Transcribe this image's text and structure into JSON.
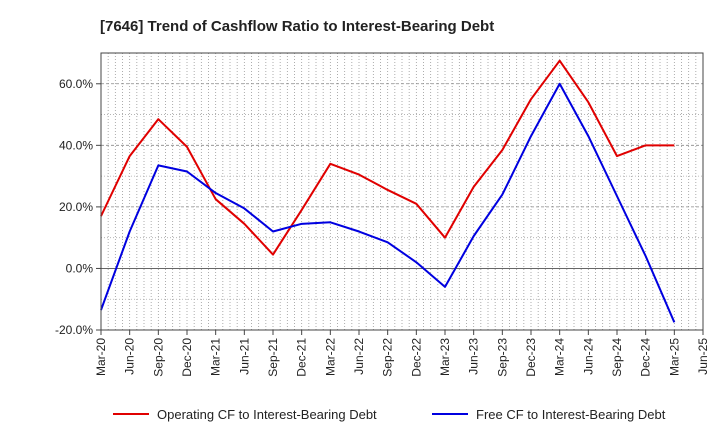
{
  "chart_data": {
    "type": "line",
    "title": "[7646]  Trend of Cashflow Ratio to Interest-Bearing Debt",
    "xlabel": "",
    "ylabel": "",
    "x": [
      "Mar-20",
      "Jun-20",
      "Sep-20",
      "Dec-20",
      "Mar-21",
      "Jun-21",
      "Sep-21",
      "Dec-21",
      "Mar-22",
      "Jun-22",
      "Sep-22",
      "Dec-22",
      "Mar-23",
      "Jun-23",
      "Sep-23",
      "Dec-23",
      "Mar-24",
      "Jun-24",
      "Sep-24",
      "Dec-24",
      "Mar-25",
      "Jun-25"
    ],
    "ylim": [
      -20,
      70
    ],
    "yticks": [
      -20,
      0,
      20,
      40,
      60
    ],
    "ytick_labels": [
      "-20.0%",
      "0.0%",
      "20.0%",
      "40.0%",
      "60.0%"
    ],
    "grid": true,
    "legend_position": "bottom",
    "series": [
      {
        "name": "Operating CF to Interest-Bearing Debt",
        "color": "#e00000",
        "values": [
          17.0,
          36.5,
          48.5,
          39.5,
          22.5,
          14.5,
          4.5,
          19.0,
          34.0,
          30.5,
          25.5,
          21.0,
          10.0,
          26.5,
          38.5,
          55.0,
          67.5,
          54.0,
          36.5,
          40.0,
          40.0,
          null
        ]
      },
      {
        "name": "Free CF to Interest-Bearing Debt",
        "color": "#0000e0",
        "values": [
          -13.5,
          12.0,
          33.5,
          31.5,
          24.5,
          19.5,
          12.0,
          14.5,
          15.0,
          12.0,
          8.5,
          2.0,
          -6.0,
          10.5,
          24.0,
          43.0,
          60.0,
          43.0,
          23.5,
          4.0,
          -17.5,
          null
        ]
      }
    ]
  }
}
